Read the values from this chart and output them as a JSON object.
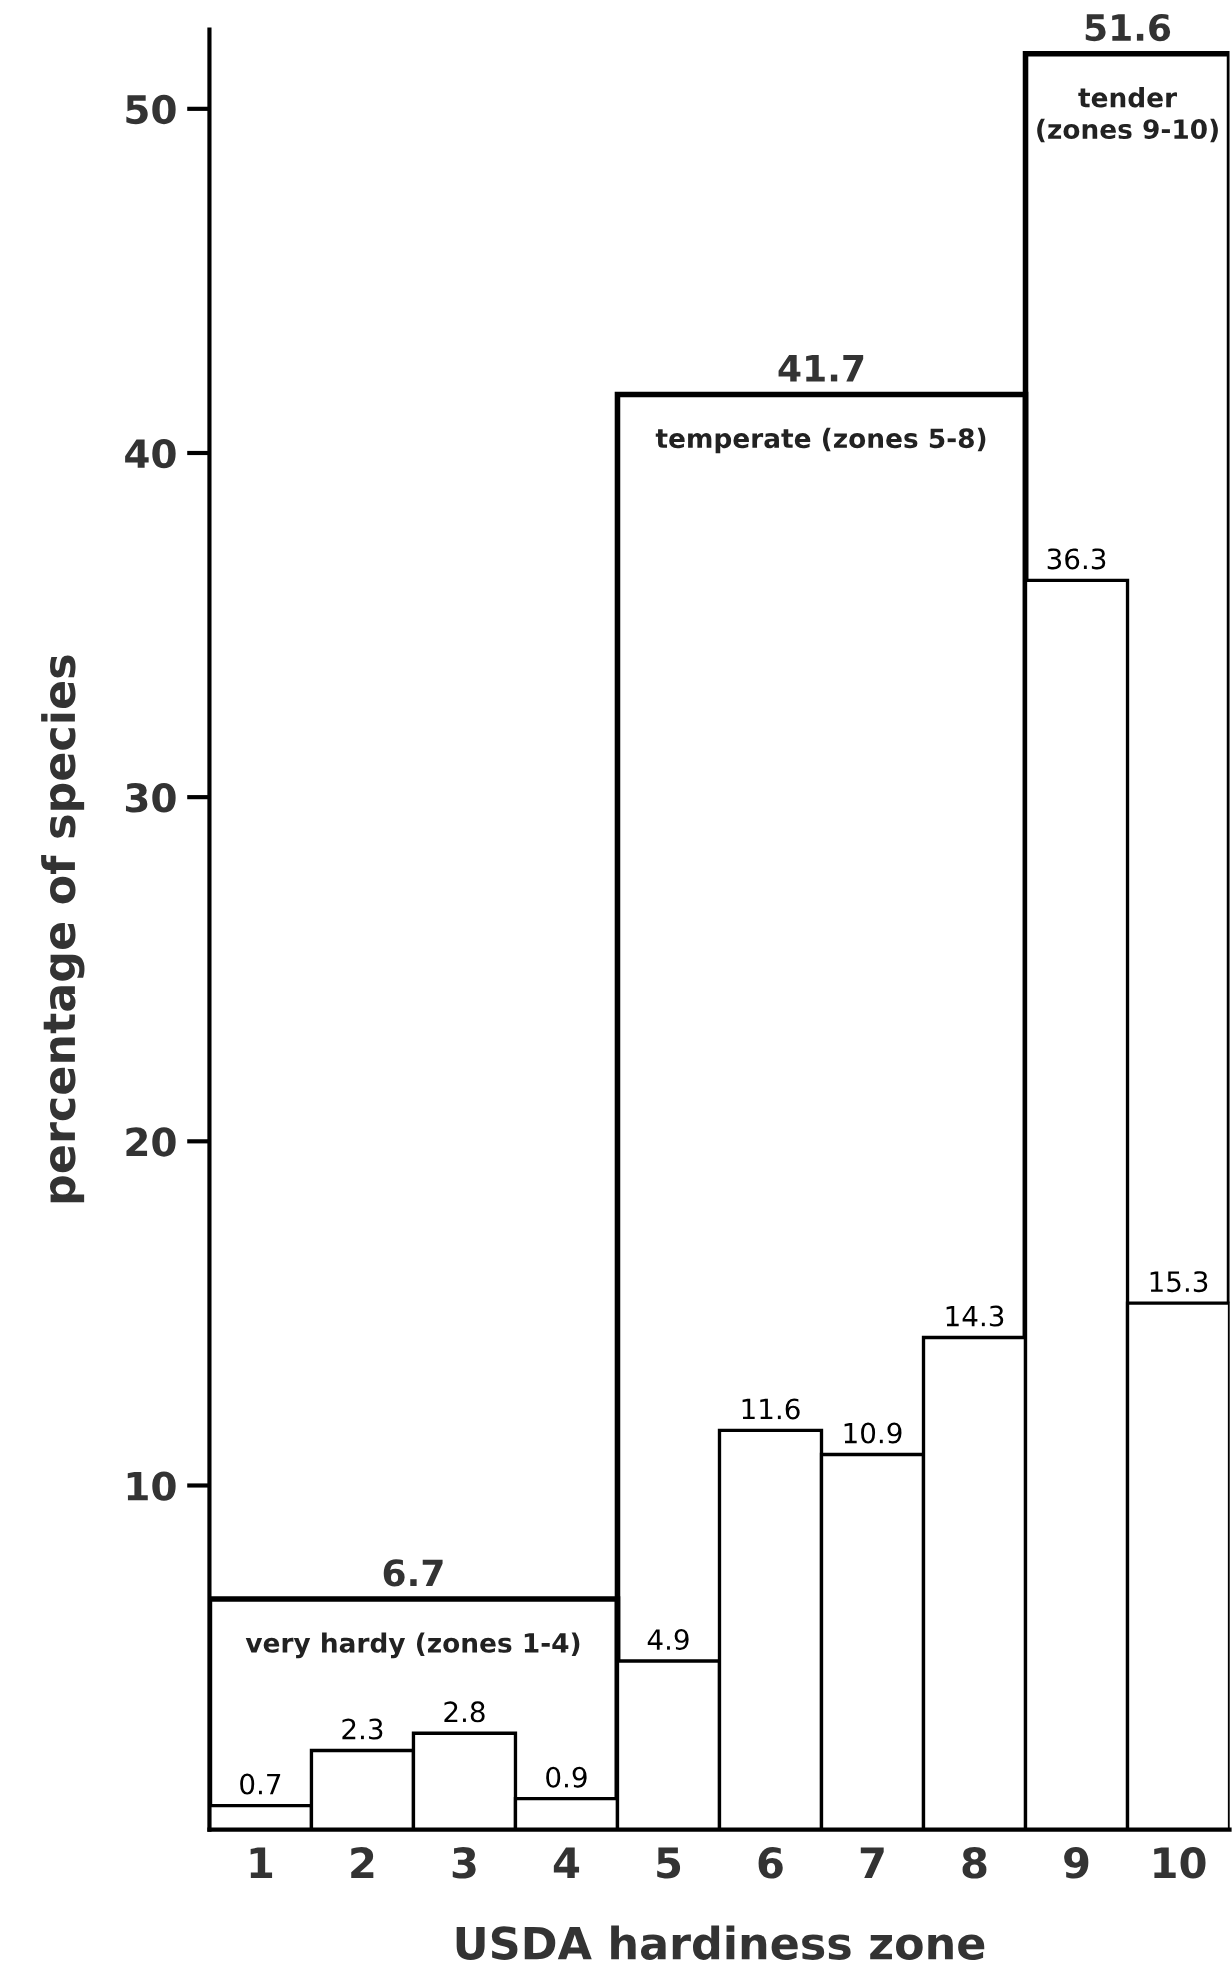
{
  "chart_data": {
    "type": "bar",
    "xlabel": "USDA hardiness zone",
    "ylabel": "percentage of species",
    "x": [
      1,
      2,
      3,
      4,
      5,
      6,
      7,
      8,
      9,
      10
    ],
    "xlim": [
      0.5,
      10.5
    ],
    "xticks": [
      1,
      2,
      3,
      4,
      5,
      6,
      7,
      8,
      9,
      10
    ],
    "ylim": [
      0,
      52.3
    ],
    "yticks": [
      10,
      20,
      30,
      40,
      50
    ],
    "grid": false,
    "data_labels": true,
    "series": [
      {
        "color": "#000000",
        "values": [
          0.7,
          2.3,
          2.8,
          0.9,
          4.9,
          11.6,
          10.9,
          14.3,
          36.3,
          15.3
        ]
      },
      {
        "type": "histogram",
        "color": "#000000",
        "bins": [
          0.5,
          4.5,
          8.5,
          10.5
        ],
        "values": [
          6.7,
          41.7,
          51.6
        ]
      }
    ],
    "annotations": [
      "very hardy (zones 1-4)",
      "temperate (zones 5-8)",
      "tender\n(zones 9-10)"
    ]
  }
}
